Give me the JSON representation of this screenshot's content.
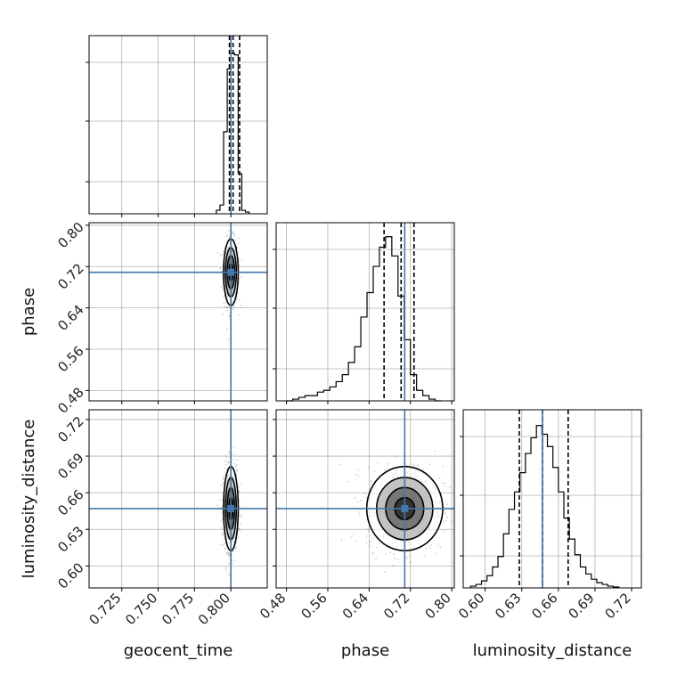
{
  "chart_data": {
    "type": "corner",
    "parameters": [
      "geocent_time",
      "phase",
      "luminosity_distance"
    ],
    "axis_labels": {
      "x": [
        "geocent_time",
        "phase",
        "luminosity_distance"
      ],
      "y": [
        "phase",
        "luminosity_distance"
      ]
    },
    "injection": {
      "geocent_time": 0.8,
      "phase": 0.709,
      "luminosity_distance": 0.647
    },
    "truth_color": "#4477aa",
    "contour_color": "#000000",
    "grid": true,
    "ranges": {
      "geocent_time": [
        0.7025,
        0.825
      ],
      "phase": [
        0.46,
        0.805
      ],
      "luminosity_distance": [
        0.582,
        0.728
      ]
    },
    "ticks": {
      "geocent_time": [
        "0.725",
        "0.750",
        "0.775",
        "0.800"
      ],
      "phase": [
        "0.48",
        "0.56",
        "0.64",
        "0.72",
        "0.80"
      ],
      "luminosity_distance": [
        "0.60",
        "0.63",
        "0.66",
        "0.69",
        "0.72"
      ]
    },
    "tick_values": {
      "geocent_time": [
        0.725,
        0.75,
        0.775,
        0.8
      ],
      "phase": [
        0.48,
        0.56,
        0.64,
        0.72,
        0.8
      ],
      "luminosity_distance": [
        0.6,
        0.63,
        0.66,
        0.69,
        0.72
      ]
    },
    "histograms": {
      "geocent_time": {
        "edges": [
          0.79,
          0.7925,
          0.795,
          0.7975,
          0.8,
          0.8025,
          0.805,
          0.8075,
          0.81,
          0.8125
        ],
        "counts": [
          0.02,
          0.05,
          0.47,
          0.83,
          0.92,
          0.91,
          0.23,
          0.02,
          0.01
        ],
        "quantiles": [
          0.799,
          0.8015,
          0.806
        ]
      },
      "phase": {
        "edges": [
          0.48,
          0.492,
          0.504,
          0.516,
          0.528,
          0.54,
          0.552,
          0.564,
          0.576,
          0.588,
          0.6,
          0.612,
          0.624,
          0.636,
          0.648,
          0.66,
          0.672,
          0.684,
          0.696,
          0.708,
          0.72,
          0.732,
          0.744,
          0.756,
          0.768,
          0.78
        ],
        "counts": [
          0.0,
          0.01,
          0.02,
          0.03,
          0.03,
          0.05,
          0.06,
          0.08,
          0.11,
          0.15,
          0.22,
          0.31,
          0.48,
          0.62,
          0.77,
          0.88,
          0.94,
          0.83,
          0.6,
          0.35,
          0.15,
          0.06,
          0.03,
          0.01,
          0.0
        ],
        "quantiles": [
          0.669,
          0.702,
          0.727
        ]
      },
      "luminosity_distance": {
        "edges": [
          0.588,
          0.5925,
          0.597,
          0.6015,
          0.606,
          0.6105,
          0.615,
          0.6195,
          0.624,
          0.6285,
          0.633,
          0.6375,
          0.642,
          0.6465,
          0.651,
          0.6555,
          0.66,
          0.6645,
          0.669,
          0.6735,
          0.678,
          0.6825,
          0.687,
          0.6915,
          0.696,
          0.7005,
          0.705,
          0.7095
        ],
        "counts": [
          0.01,
          0.02,
          0.04,
          0.07,
          0.12,
          0.18,
          0.31,
          0.45,
          0.55,
          0.66,
          0.77,
          0.86,
          0.93,
          0.88,
          0.81,
          0.69,
          0.55,
          0.4,
          0.28,
          0.19,
          0.12,
          0.08,
          0.05,
          0.03,
          0.02,
          0.01,
          0.005
        ],
        "quantiles": [
          0.628,
          0.647,
          0.668
        ]
      }
    },
    "joint_2d": [
      {
        "x": "geocent_time",
        "y": "phase",
        "x_std": 0.0022,
        "y_std": 0.028
      },
      {
        "x": "geocent_time",
        "y": "luminosity_distance",
        "x_std": 0.0022,
        "y_std": 0.015
      },
      {
        "x": "phase",
        "y": "luminosity_distance",
        "x_std": 0.032,
        "y_std": 0.015
      }
    ]
  }
}
